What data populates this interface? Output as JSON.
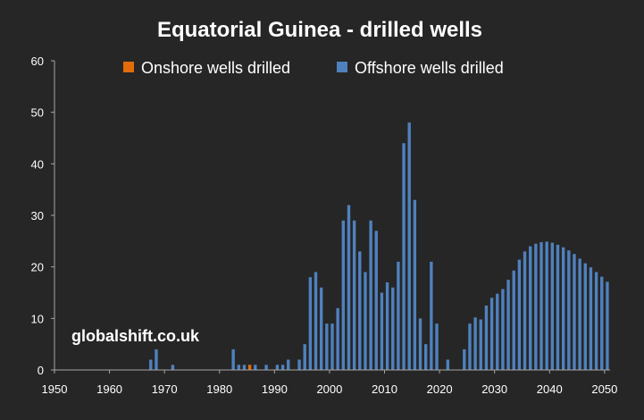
{
  "chart_data": {
    "type": "bar",
    "title": "Equatorial Guinea - drilled wells",
    "xlabel": "",
    "ylabel": "",
    "xlim": [
      1950,
      2051
    ],
    "ylim": [
      0,
      60
    ],
    "yticks": [
      0,
      10,
      20,
      30,
      40,
      50,
      60
    ],
    "xticks": [
      1950,
      1960,
      1970,
      1980,
      1990,
      2000,
      2010,
      2020,
      2030,
      2040,
      2050
    ],
    "grid": false,
    "legend_position": "top",
    "watermark": "globalshift.co.uk",
    "colors": {
      "background": "#262626",
      "axis": "#a6a6a6",
      "text": "#ffffff"
    },
    "series": [
      {
        "name": "Onshore wells drilled",
        "color": "#e36c09",
        "points": [
          [
            1985,
            1
          ]
        ]
      },
      {
        "name": "Offshore wells drilled",
        "color": "#4f81bd",
        "points": [
          [
            1967,
            2
          ],
          [
            1968,
            4
          ],
          [
            1971,
            1
          ],
          [
            1982,
            4
          ],
          [
            1983,
            1
          ],
          [
            1984,
            1
          ],
          [
            1986,
            1
          ],
          [
            1988,
            1
          ],
          [
            1990,
            1
          ],
          [
            1991,
            1
          ],
          [
            1992,
            2
          ],
          [
            1994,
            2
          ],
          [
            1995,
            5
          ],
          [
            1996,
            18
          ],
          [
            1997,
            19
          ],
          [
            1998,
            16
          ],
          [
            1999,
            9
          ],
          [
            2000,
            9
          ],
          [
            2001,
            12
          ],
          [
            2002,
            29
          ],
          [
            2003,
            32
          ],
          [
            2004,
            29
          ],
          [
            2005,
            23
          ],
          [
            2006,
            19
          ],
          [
            2007,
            29
          ],
          [
            2008,
            27
          ],
          [
            2009,
            15
          ],
          [
            2010,
            17
          ],
          [
            2011,
            16
          ],
          [
            2012,
            21
          ],
          [
            2013,
            44
          ],
          [
            2014,
            48
          ],
          [
            2015,
            33
          ],
          [
            2016,
            10
          ],
          [
            2017,
            5
          ],
          [
            2018,
            21
          ],
          [
            2019,
            9
          ],
          [
            2021,
            2
          ],
          [
            2024,
            4
          ],
          [
            2025,
            9
          ],
          [
            2026,
            10.2
          ],
          [
            2027,
            9.8
          ],
          [
            2028,
            12.5
          ],
          [
            2029,
            14
          ],
          [
            2030,
            14.8
          ],
          [
            2031,
            15.7
          ],
          [
            2032,
            17.5
          ],
          [
            2033,
            19.3
          ],
          [
            2034,
            21.4
          ],
          [
            2035,
            23
          ],
          [
            2036,
            24
          ],
          [
            2037,
            24.5
          ],
          [
            2038,
            24.8
          ],
          [
            2039,
            24.9
          ],
          [
            2040,
            24.7
          ],
          [
            2041,
            24.3
          ],
          [
            2042,
            23.8
          ],
          [
            2043,
            23.2
          ],
          [
            2044,
            22.5
          ],
          [
            2045,
            21.6
          ],
          [
            2046,
            20.7
          ],
          [
            2047,
            19.9
          ],
          [
            2048,
            19
          ],
          [
            2049,
            18.1
          ],
          [
            2050,
            17.1
          ]
        ]
      }
    ]
  }
}
